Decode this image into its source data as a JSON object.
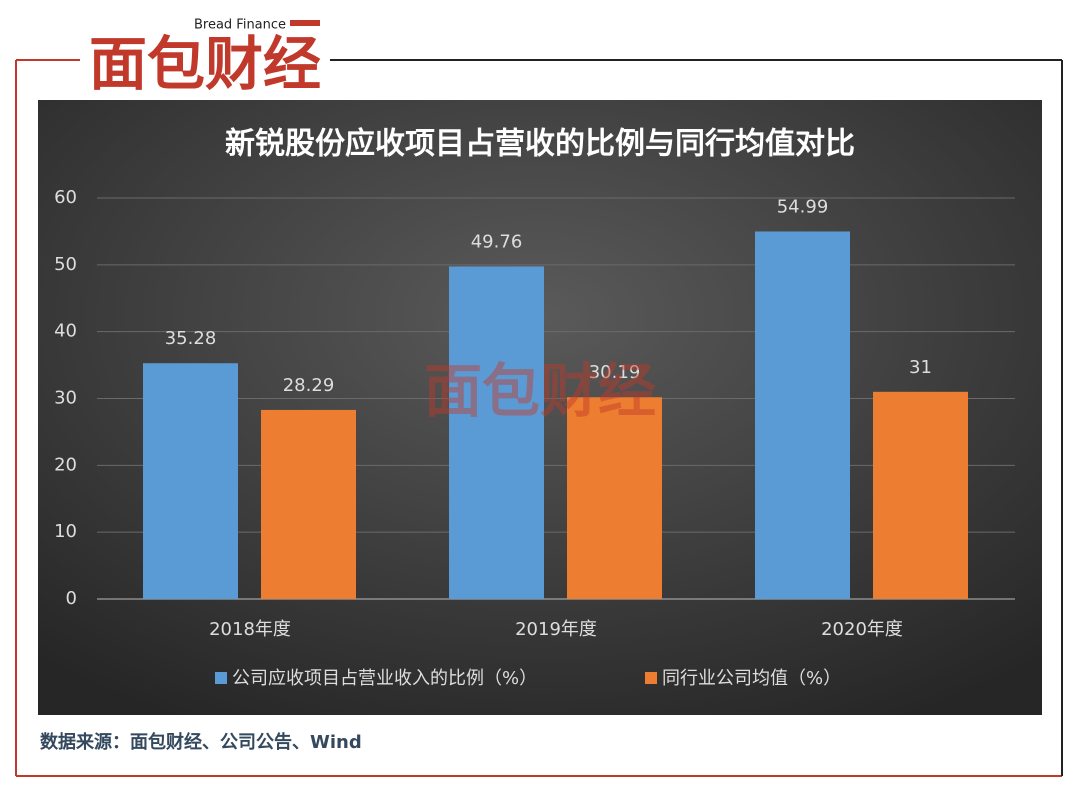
{
  "brand": {
    "name": "面包财经",
    "tagline": "Bread Finance"
  },
  "source": "数据来源：面包财经、公司公告、Wind",
  "chart_data": {
    "type": "bar",
    "title": "新锐股份应收项目占营收的比例与同行均值对比",
    "categories": [
      "2018年度",
      "2019年度",
      "2020年度"
    ],
    "series": [
      {
        "name": "公司应收项目占营业收入的比例（%）",
        "color": "#5b9bd5",
        "values": [
          35.28,
          49.76,
          54.99
        ]
      },
      {
        "name": "同行业公司均值（%）",
        "color": "#ed7d31",
        "values": [
          28.29,
          30.19,
          31
        ]
      }
    ],
    "ylim": [
      0,
      60
    ],
    "yticks": [
      0,
      10,
      20,
      30,
      40,
      50,
      60
    ],
    "grid": true,
    "legend": "bottom"
  }
}
